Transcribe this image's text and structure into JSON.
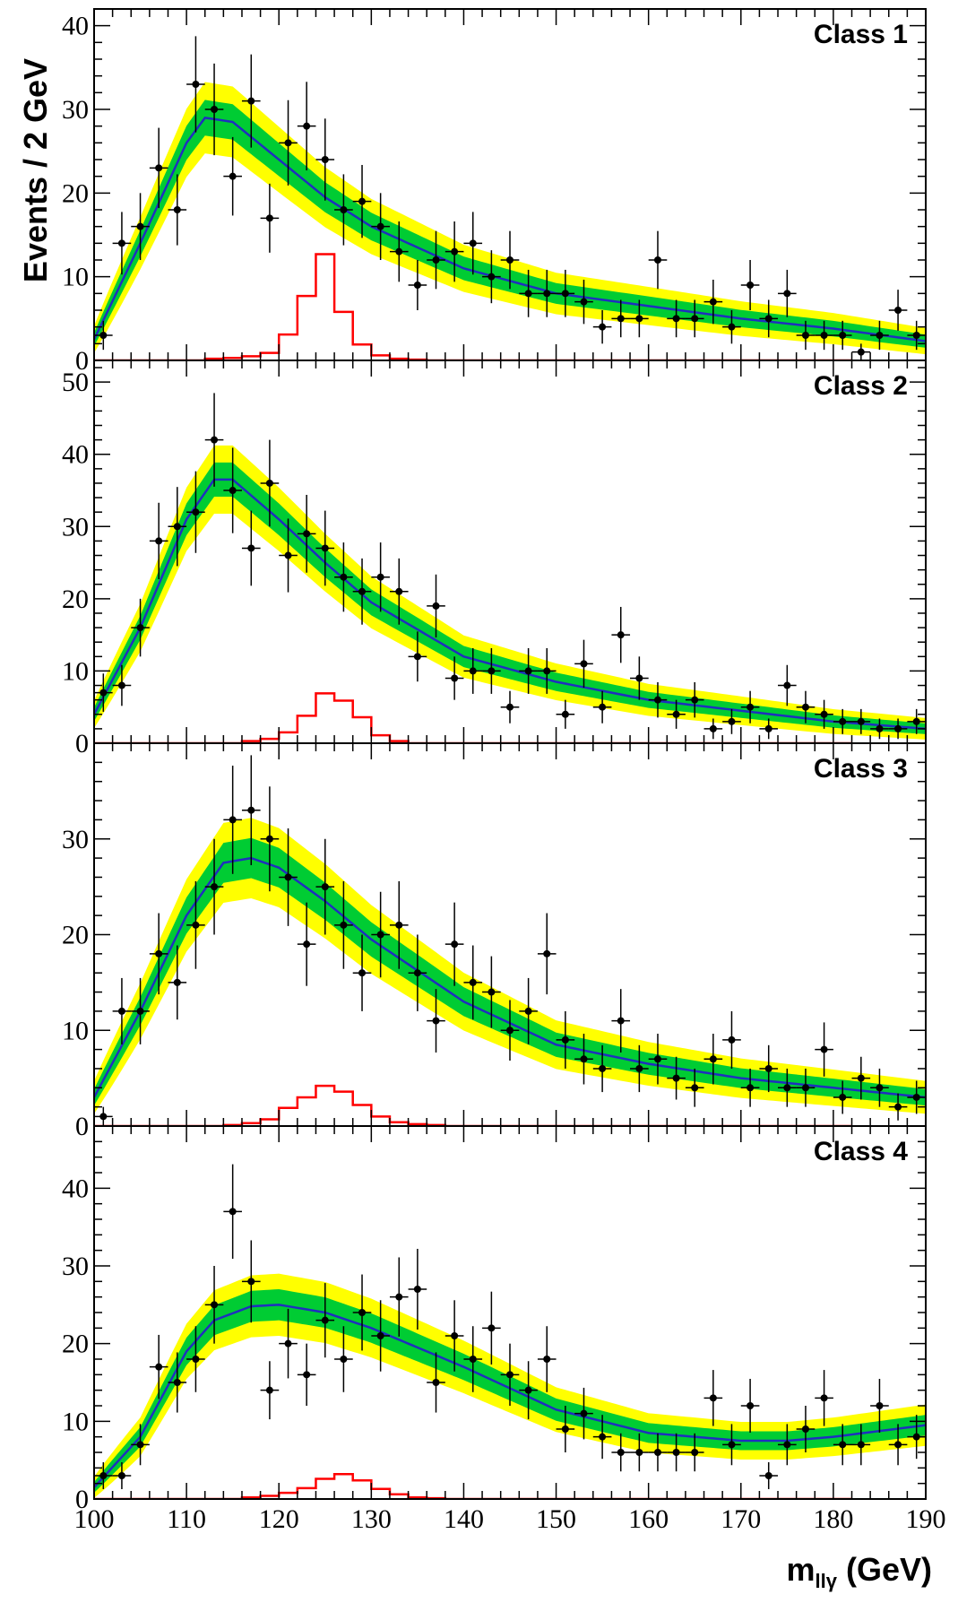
{
  "figure": {
    "ylabel": "Events / 2 GeV",
    "xlabel_main": "m",
    "xlabel_sub": "llγ",
    "xlabel_unit": " (GeV)"
  },
  "colors": {
    "data_points": "#000000",
    "fit_line": "#1f2fbf",
    "band_1sigma": "#00cc33",
    "band_2sigma": "#ffff00",
    "signal": "#ff0000"
  },
  "chart_data": [
    {
      "type": "scatter",
      "title": "Class 1",
      "xlim": [
        100,
        190
      ],
      "ylim": [
        0,
        42
      ],
      "yticks": [
        0,
        10,
        20,
        30,
        40
      ],
      "xticks": [
        100,
        110,
        120,
        130,
        140,
        150,
        160,
        170,
        180,
        190
      ],
      "data": {
        "x": [
          101,
          103,
          105,
          107,
          109,
          111,
          113,
          115,
          117,
          119,
          121,
          123,
          125,
          127,
          129,
          131,
          133,
          135,
          137,
          139,
          141,
          143,
          145,
          147,
          149,
          151,
          153,
          155,
          157,
          159,
          161,
          163,
          165,
          167,
          169,
          171,
          173,
          175,
          177,
          179,
          181,
          183,
          185,
          187,
          189
        ],
        "y": [
          3,
          14,
          16,
          23,
          18,
          33,
          30,
          22,
          31,
          17,
          26,
          28,
          24,
          18,
          19,
          16,
          13,
          9,
          12,
          13,
          14,
          10,
          12,
          8,
          8,
          8,
          7,
          4,
          5,
          5,
          12,
          5,
          5,
          7,
          4,
          9,
          5,
          8,
          3,
          3,
          3,
          1,
          3,
          6,
          3
        ]
      },
      "fit": {
        "x": [
          100,
          105,
          110,
          112,
          115,
          120,
          125,
          130,
          140,
          150,
          160,
          170,
          180,
          190
        ],
        "y": [
          2.5,
          14,
          26,
          29,
          28.5,
          24,
          19.5,
          16,
          11,
          8,
          6.5,
          5,
          3.8,
          2.3
        ]
      },
      "signal": {
        "x": [
          100,
          102,
          104,
          106,
          108,
          110,
          112,
          114,
          116,
          118,
          120,
          122,
          124,
          126,
          128,
          130,
          132,
          134,
          136,
          138,
          140,
          142,
          144,
          146,
          148,
          150,
          152,
          154,
          156,
          158,
          160,
          162,
          164,
          166,
          168,
          170,
          172,
          174,
          176,
          178,
          180
        ],
        "y": [
          0,
          0,
          0,
          0,
          0,
          0,
          0.2,
          0.3,
          0.5,
          0.9,
          3.1,
          7.7,
          12.7,
          5.8,
          1.9,
          0.6,
          0.2,
          0.1,
          0,
          0,
          0,
          0,
          0,
          0,
          0,
          0,
          0,
          0,
          0,
          0,
          0,
          0,
          0,
          0,
          0,
          0,
          0,
          0,
          0,
          0,
          0
        ]
      }
    },
    {
      "type": "scatter",
      "title": "Class 2",
      "xlim": [
        100,
        190
      ],
      "ylim": [
        0,
        53
      ],
      "yticks": [
        0,
        10,
        20,
        30,
        40,
        50
      ],
      "xticks": [
        100,
        110,
        120,
        130,
        140,
        150,
        160,
        170,
        180,
        190
      ],
      "data": {
        "x": [
          101,
          103,
          105,
          107,
          109,
          111,
          113,
          115,
          117,
          119,
          121,
          123,
          125,
          127,
          129,
          131,
          133,
          135,
          137,
          139,
          141,
          143,
          145,
          147,
          149,
          151,
          153,
          155,
          157,
          159,
          161,
          163,
          165,
          167,
          169,
          171,
          173,
          175,
          177,
          179,
          181,
          183,
          185,
          187,
          189
        ],
        "y": [
          7,
          8,
          16,
          28,
          30,
          32,
          42,
          35,
          27,
          36,
          26,
          29,
          27,
          23,
          21,
          23,
          21,
          12,
          19,
          9,
          10,
          10,
          5,
          10,
          10,
          4,
          11,
          5,
          15,
          9,
          6,
          4,
          6,
          2,
          3,
          5,
          2,
          8,
          5,
          4,
          3,
          3,
          2,
          2,
          3
        ]
      },
      "fit": {
        "x": [
          100,
          105,
          110,
          113,
          115,
          120,
          125,
          130,
          140,
          150,
          160,
          170,
          180,
          190
        ],
        "y": [
          4,
          16,
          31,
          36.5,
          36.5,
          31,
          25,
          19.5,
          12,
          8.5,
          6,
          4.5,
          3,
          2
        ]
      },
      "signal": {
        "x": [
          100,
          102,
          104,
          106,
          108,
          110,
          112,
          114,
          116,
          118,
          120,
          122,
          124,
          126,
          128,
          130,
          132,
          134,
          136,
          138,
          140,
          142,
          144,
          146,
          148,
          150,
          152,
          154,
          156,
          158,
          160,
          162,
          164,
          166,
          168,
          170,
          172,
          174,
          176,
          178,
          180
        ],
        "y": [
          0,
          0,
          0,
          0,
          0,
          0,
          0,
          0,
          0.3,
          0.6,
          1.5,
          3.8,
          6.9,
          5.9,
          3.6,
          1.1,
          0.3,
          0,
          0,
          0,
          0,
          0,
          0,
          0,
          0,
          0,
          0,
          0,
          0,
          0,
          0,
          0,
          0,
          0,
          0,
          0,
          0,
          0,
          0,
          0,
          0
        ]
      }
    },
    {
      "type": "scatter",
      "title": "Class 3",
      "xlim": [
        100,
        190
      ],
      "ylim": [
        0,
        40
      ],
      "yticks": [
        0,
        10,
        20,
        30
      ],
      "xticks": [
        100,
        110,
        120,
        130,
        140,
        150,
        160,
        170,
        180,
        190
      ],
      "data": {
        "x": [
          101,
          103,
          105,
          107,
          109,
          111,
          113,
          115,
          117,
          119,
          121,
          123,
          125,
          127,
          129,
          131,
          133,
          135,
          137,
          139,
          141,
          143,
          145,
          147,
          149,
          151,
          153,
          155,
          157,
          159,
          161,
          163,
          165,
          167,
          169,
          171,
          173,
          175,
          177,
          179,
          181,
          183,
          185,
          187,
          189
        ],
        "y": [
          1,
          12,
          12,
          18,
          15,
          21,
          25,
          32,
          33,
          30,
          26,
          19,
          25,
          21,
          16,
          20,
          21,
          16,
          11,
          19,
          15,
          14,
          10,
          12,
          18,
          9,
          7,
          6,
          11,
          6,
          7,
          5,
          4,
          7,
          9,
          4,
          6,
          4,
          4,
          8,
          3,
          5,
          4,
          2,
          3
        ]
      },
      "fit": {
        "x": [
          100,
          105,
          110,
          114,
          117,
          120,
          125,
          130,
          140,
          150,
          160,
          170,
          180,
          190
        ],
        "y": [
          3,
          12,
          22,
          27.5,
          28,
          27,
          23.5,
          19.5,
          13,
          8.5,
          6.5,
          5,
          4,
          3
        ]
      },
      "signal": {
        "x": [
          100,
          102,
          104,
          106,
          108,
          110,
          112,
          114,
          116,
          118,
          120,
          122,
          124,
          126,
          128,
          130,
          132,
          134,
          136,
          138,
          140,
          142,
          144,
          146,
          148,
          150,
          152,
          154,
          156,
          158,
          160,
          162,
          164,
          166,
          168,
          170,
          172,
          174,
          176,
          178,
          180
        ],
        "y": [
          0,
          0,
          0,
          0,
          0,
          0,
          0,
          0.1,
          0.3,
          0.7,
          1.9,
          3,
          4.2,
          3.6,
          2.2,
          1,
          0.4,
          0.2,
          0.1,
          0,
          0,
          0,
          0,
          0,
          0,
          0,
          0,
          0,
          0,
          0,
          0,
          0,
          0,
          0,
          0,
          0,
          0,
          0,
          0,
          0,
          0
        ]
      }
    },
    {
      "type": "scatter",
      "title": "Class 4",
      "xlim": [
        100,
        190
      ],
      "ylim": [
        0,
        48
      ],
      "yticks": [
        0,
        10,
        20,
        30,
        40
      ],
      "xticks": [
        100,
        110,
        120,
        130,
        140,
        150,
        160,
        170,
        180,
        190
      ],
      "xticklabels": [
        "100",
        "110",
        "120",
        "130",
        "140",
        "150",
        "160",
        "170",
        "180",
        "190"
      ],
      "data": {
        "x": [
          101,
          103,
          105,
          107,
          109,
          111,
          113,
          115,
          117,
          119,
          121,
          123,
          125,
          127,
          129,
          131,
          133,
          135,
          137,
          139,
          141,
          143,
          145,
          147,
          149,
          151,
          153,
          155,
          157,
          159,
          161,
          163,
          165,
          167,
          169,
          171,
          173,
          175,
          177,
          179,
          181,
          183,
          185,
          187,
          189
        ],
        "y": [
          3,
          3,
          7,
          17,
          15,
          18,
          25,
          37,
          28,
          14,
          20,
          16,
          23,
          18,
          24,
          21,
          26,
          27,
          15,
          21,
          18,
          22,
          16,
          14,
          18,
          9,
          11,
          8,
          6,
          6,
          6,
          6,
          6,
          13,
          7,
          12,
          3,
          7,
          9,
          13,
          7,
          7,
          12,
          7,
          8
        ]
      },
      "fit": {
        "x": [
          100,
          105,
          110,
          113,
          117,
          120,
          125,
          130,
          140,
          150,
          160,
          170,
          175,
          180,
          190
        ],
        "y": [
          1.5,
          8,
          19,
          23,
          24.8,
          25,
          24,
          22,
          17,
          11.5,
          8.5,
          7.5,
          7.5,
          8,
          9.5
        ]
      },
      "signal": {
        "x": [
          100,
          102,
          104,
          106,
          108,
          110,
          112,
          114,
          116,
          118,
          120,
          122,
          124,
          126,
          128,
          130,
          132,
          134,
          136,
          138,
          140,
          142,
          144,
          146,
          148,
          150,
          152,
          154,
          156,
          158,
          160,
          162,
          164,
          166,
          168,
          170,
          172,
          174,
          176,
          178,
          180
        ],
        "y": [
          0,
          0,
          0,
          0,
          0,
          0,
          0,
          0,
          0.2,
          0.4,
          0.8,
          1.4,
          2.6,
          3.2,
          2.4,
          1.3,
          0.6,
          0.2,
          0.1,
          0,
          0,
          0,
          0,
          0,
          0,
          0,
          0,
          0,
          0,
          0,
          0,
          0,
          0,
          0,
          0,
          0,
          0,
          0,
          0,
          0,
          0
        ]
      }
    }
  ]
}
